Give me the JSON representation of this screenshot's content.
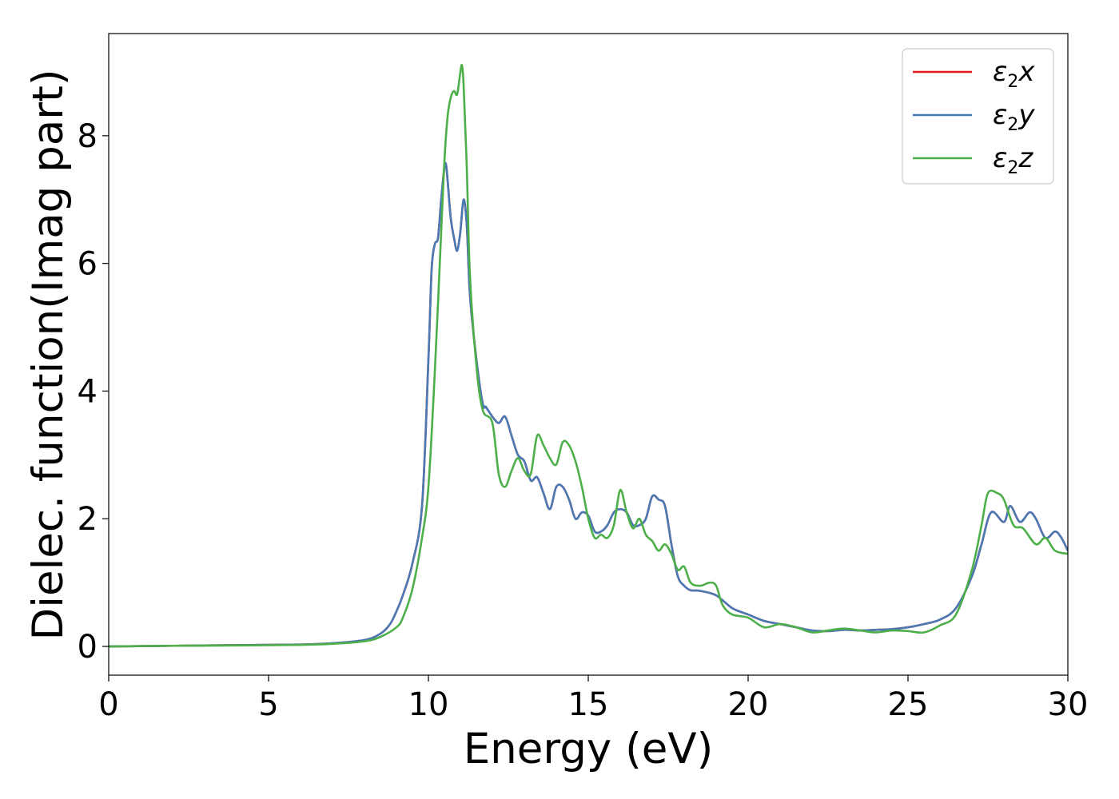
{
  "chart_data": {
    "type": "line",
    "title": "",
    "xlabel": "Energy (eV)",
    "ylabel": "Dielec. function(Imag part)",
    "xlim": [
      0,
      30
    ],
    "ylim": [
      -0.45,
      9.6
    ],
    "xticks": [
      0,
      5,
      10,
      15,
      20,
      25,
      30
    ],
    "yticks": [
      0,
      2,
      4,
      6,
      8
    ],
    "grid": false,
    "legend_position": "top-right",
    "series": [
      {
        "name": "ε2x",
        "legend_symbol": "ε",
        "legend_sub": "2",
        "legend_var": "x",
        "color": "#e41a1c",
        "x": [
          0,
          2,
          4,
          6,
          7,
          8,
          8.5,
          8.8,
          9.0,
          9.2,
          9.5,
          9.8,
          10.0,
          10.1,
          10.2,
          10.3,
          10.4,
          10.5,
          10.55,
          10.6,
          10.7,
          10.8,
          10.9,
          11.0,
          11.1,
          11.2,
          11.3,
          11.5,
          11.7,
          11.8,
          12.0,
          12.2,
          12.4,
          12.6,
          12.8,
          13.0,
          13.2,
          13.4,
          13.6,
          13.8,
          14.0,
          14.2,
          14.4,
          14.6,
          14.8,
          15.0,
          15.2,
          15.4,
          15.6,
          15.8,
          16.0,
          16.2,
          16.4,
          16.6,
          16.8,
          17.0,
          17.2,
          17.4,
          17.6,
          17.8,
          18.0,
          18.2,
          18.5,
          19.0,
          19.5,
          20.0,
          20.5,
          21.0,
          21.5,
          22.0,
          22.5,
          23.0,
          23.5,
          24.0,
          24.5,
          25.0,
          25.5,
          26.0,
          26.5,
          27.0,
          27.3,
          27.6,
          28.0,
          28.2,
          28.5,
          28.8,
          29.0,
          29.3,
          29.6,
          29.8,
          30.0
        ],
        "values": [
          0.0,
          0.01,
          0.02,
          0.03,
          0.05,
          0.1,
          0.2,
          0.35,
          0.55,
          0.8,
          1.3,
          2.2,
          4.5,
          5.9,
          6.3,
          6.4,
          7.0,
          7.5,
          7.55,
          7.3,
          6.7,
          6.4,
          6.2,
          6.5,
          7.0,
          6.6,
          5.5,
          4.5,
          3.8,
          3.75,
          3.6,
          3.5,
          3.6,
          3.3,
          3.0,
          2.9,
          2.6,
          2.65,
          2.4,
          2.15,
          2.5,
          2.5,
          2.3,
          2.0,
          2.1,
          2.05,
          1.8,
          1.8,
          1.9,
          2.1,
          2.15,
          2.1,
          1.9,
          1.9,
          2.0,
          2.35,
          2.3,
          2.2,
          1.6,
          1.1,
          0.95,
          0.88,
          0.87,
          0.8,
          0.6,
          0.5,
          0.4,
          0.35,
          0.3,
          0.25,
          0.24,
          0.26,
          0.25,
          0.26,
          0.27,
          0.3,
          0.35,
          0.42,
          0.6,
          1.1,
          1.6,
          2.1,
          1.95,
          2.2,
          1.95,
          2.1,
          2.0,
          1.7,
          1.8,
          1.7,
          1.5
        ]
      },
      {
        "name": "ε2y",
        "legend_symbol": "ε",
        "legend_sub": "2",
        "legend_var": "y",
        "color": "#4a7ab5",
        "x": [
          0,
          2,
          4,
          6,
          7,
          8,
          8.5,
          8.8,
          9.0,
          9.2,
          9.5,
          9.8,
          10.0,
          10.1,
          10.2,
          10.3,
          10.4,
          10.5,
          10.55,
          10.6,
          10.7,
          10.8,
          10.9,
          11.0,
          11.1,
          11.2,
          11.3,
          11.5,
          11.7,
          11.8,
          12.0,
          12.2,
          12.4,
          12.6,
          12.8,
          13.0,
          13.2,
          13.4,
          13.6,
          13.8,
          14.0,
          14.2,
          14.4,
          14.6,
          14.8,
          15.0,
          15.2,
          15.4,
          15.6,
          15.8,
          16.0,
          16.2,
          16.4,
          16.6,
          16.8,
          17.0,
          17.2,
          17.4,
          17.6,
          17.8,
          18.0,
          18.2,
          18.5,
          19.0,
          19.5,
          20.0,
          20.5,
          21.0,
          21.5,
          22.0,
          22.5,
          23.0,
          23.5,
          24.0,
          24.5,
          25.0,
          25.5,
          26.0,
          26.5,
          27.0,
          27.3,
          27.6,
          28.0,
          28.2,
          28.5,
          28.8,
          29.0,
          29.3,
          29.6,
          29.8,
          30.0
        ],
        "values": [
          0.0,
          0.01,
          0.02,
          0.03,
          0.05,
          0.1,
          0.2,
          0.35,
          0.55,
          0.8,
          1.3,
          2.2,
          4.5,
          5.9,
          6.3,
          6.4,
          7.0,
          7.5,
          7.55,
          7.3,
          6.7,
          6.4,
          6.2,
          6.5,
          7.0,
          6.6,
          5.5,
          4.5,
          3.8,
          3.75,
          3.6,
          3.5,
          3.6,
          3.3,
          3.0,
          2.9,
          2.6,
          2.65,
          2.4,
          2.15,
          2.5,
          2.5,
          2.3,
          2.0,
          2.1,
          2.05,
          1.8,
          1.8,
          1.9,
          2.1,
          2.15,
          2.1,
          1.9,
          1.9,
          2.0,
          2.35,
          2.3,
          2.2,
          1.6,
          1.1,
          0.95,
          0.88,
          0.87,
          0.8,
          0.6,
          0.5,
          0.4,
          0.35,
          0.3,
          0.25,
          0.24,
          0.26,
          0.25,
          0.26,
          0.27,
          0.3,
          0.35,
          0.42,
          0.6,
          1.1,
          1.6,
          2.1,
          1.95,
          2.2,
          1.95,
          2.1,
          2.0,
          1.7,
          1.8,
          1.7,
          1.5
        ]
      },
      {
        "name": "ε2z",
        "legend_symbol": "ε",
        "legend_sub": "2",
        "legend_var": "z",
        "color": "#4daf4a",
        "x": [
          0,
          2,
          4,
          6,
          7,
          8,
          8.5,
          9.0,
          9.2,
          9.5,
          9.8,
          10.0,
          10.2,
          10.4,
          10.5,
          10.6,
          10.7,
          10.8,
          10.9,
          11.0,
          11.05,
          11.1,
          11.2,
          11.3,
          11.5,
          11.7,
          12.0,
          12.2,
          12.4,
          12.6,
          12.8,
          13.0,
          13.2,
          13.4,
          13.6,
          13.8,
          14.0,
          14.2,
          14.4,
          14.6,
          14.8,
          15.0,
          15.2,
          15.4,
          15.6,
          15.8,
          16.0,
          16.2,
          16.4,
          16.6,
          16.8,
          17.0,
          17.2,
          17.4,
          17.6,
          17.8,
          18.0,
          18.2,
          18.5,
          18.8,
          19.0,
          19.2,
          19.5,
          20.0,
          20.5,
          21.0,
          21.5,
          22.0,
          22.5,
          23.0,
          23.5,
          24.0,
          24.5,
          25.0,
          25.5,
          26.0,
          26.5,
          27.0,
          27.3,
          27.5,
          27.8,
          28.0,
          28.3,
          28.6,
          29.0,
          29.3,
          29.6,
          30.0
        ],
        "values": [
          0.0,
          0.01,
          0.015,
          0.025,
          0.04,
          0.08,
          0.15,
          0.3,
          0.45,
          0.9,
          1.7,
          2.5,
          4.3,
          6.5,
          7.6,
          8.3,
          8.6,
          8.7,
          8.65,
          9.0,
          9.1,
          8.8,
          7.5,
          5.8,
          4.4,
          3.7,
          3.5,
          2.7,
          2.5,
          2.75,
          2.95,
          2.75,
          2.7,
          3.3,
          3.15,
          2.95,
          2.85,
          3.2,
          3.15,
          2.9,
          2.5,
          2.0,
          1.7,
          1.75,
          1.7,
          1.9,
          2.45,
          2.1,
          1.85,
          2.0,
          1.75,
          1.65,
          1.5,
          1.6,
          1.45,
          1.2,
          1.25,
          1.0,
          0.95,
          1.0,
          0.95,
          0.65,
          0.5,
          0.45,
          0.3,
          0.35,
          0.3,
          0.22,
          0.25,
          0.28,
          0.25,
          0.22,
          0.25,
          0.24,
          0.22,
          0.33,
          0.5,
          1.2,
          1.9,
          2.4,
          2.4,
          2.3,
          1.9,
          1.85,
          1.6,
          1.7,
          1.5,
          1.45
        ]
      }
    ]
  }
}
